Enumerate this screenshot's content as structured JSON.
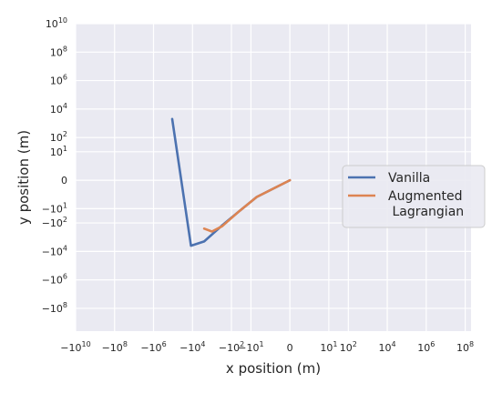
{
  "chart_data": {
    "type": "line",
    "title": "",
    "xlabel": "x position (m)",
    "ylabel": "y position (m)",
    "x_scale": "symlog",
    "y_scale": "symlog",
    "xlim": [
      -10000000000.0,
      200000000.0
    ],
    "ylim": [
      -4000000000.0,
      10000000000.0
    ],
    "grid": true,
    "x_ticks": [
      {
        "v": -10000000000.0,
        "base": "−10",
        "exp": "10"
      },
      {
        "v": -100000000.0,
        "base": "−10",
        "exp": "8"
      },
      {
        "v": -1000000.0,
        "base": "−10",
        "exp": "6"
      },
      {
        "v": -10000.0,
        "base": "−10",
        "exp": "4"
      },
      {
        "v": -100.0,
        "base": "−10",
        "exp": "2"
      },
      {
        "v": -10.0,
        "base": "−10",
        "exp": "1"
      },
      {
        "v": 0,
        "base": "0",
        "exp": ""
      },
      {
        "v": 10.0,
        "base": "10",
        "exp": "1"
      },
      {
        "v": 100.0,
        "base": "10",
        "exp": "2"
      },
      {
        "v": 10000.0,
        "base": "10",
        "exp": "4"
      },
      {
        "v": 1000000.0,
        "base": "10",
        "exp": "6"
      },
      {
        "v": 100000000.0,
        "base": "10",
        "exp": "8"
      }
    ],
    "y_ticks": [
      {
        "v": 10000000000.0,
        "base": "10",
        "exp": "10"
      },
      {
        "v": 100000000.0,
        "base": "10",
        "exp": "8"
      },
      {
        "v": 1000000.0,
        "base": "10",
        "exp": "6"
      },
      {
        "v": 10000.0,
        "base": "10",
        "exp": "4"
      },
      {
        "v": 100.0,
        "base": "10",
        "exp": "2"
      },
      {
        "v": 10.0,
        "base": "10",
        "exp": "1"
      },
      {
        "v": 0,
        "base": "0",
        "exp": ""
      },
      {
        "v": -10.0,
        "base": "−10",
        "exp": "1"
      },
      {
        "v": -100.0,
        "base": "−10",
        "exp": "2"
      },
      {
        "v": -10000.0,
        "base": "−10",
        "exp": "4"
      },
      {
        "v": -1000000.0,
        "base": "−10",
        "exp": "6"
      },
      {
        "v": -100000000.0,
        "base": "−10",
        "exp": "8"
      }
    ],
    "legend": {
      "position": "center-right"
    },
    "series": [
      {
        "name": "Vanilla",
        "color": "#4c72b0",
        "x": [
          -110000,
          -12000,
          -2500,
          -300,
          -40,
          -5,
          0
        ],
        "y": [
          2000,
          -4000,
          -2000,
          -150,
          -15,
          -1.5,
          0
        ]
      },
      {
        "name": "Augmented\n Lagrangian",
        "color": "#dd8452",
        "x": [
          -2500,
          -1000,
          -300,
          -40,
          -5,
          0
        ],
        "y": [
          -250,
          -400,
          -170,
          -15,
          -1.5,
          0
        ]
      }
    ]
  }
}
